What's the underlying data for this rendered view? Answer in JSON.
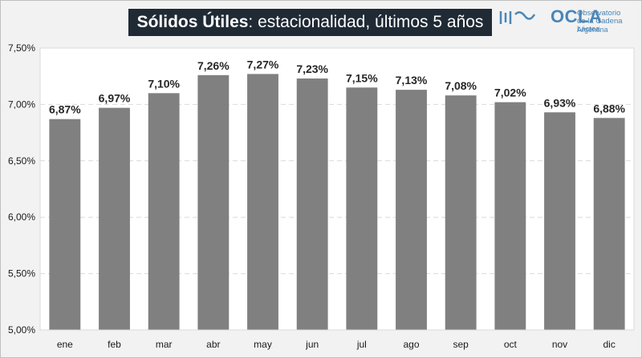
{
  "header": {
    "title_bold": "Sólidos Útiles",
    "title_rest": ": estacionalidad, últimos 5 años"
  },
  "logo": {
    "name": "OCLA",
    "line1": "Observatorio",
    "line2": "de la Cadena Láctea",
    "line3": "Argentina",
    "icon": "milk-wave-icon",
    "color": "#4a86b8"
  },
  "chart_data": {
    "type": "bar",
    "title": "Sólidos Útiles: estacionalidad, últimos 5 años",
    "xlabel": "",
    "ylabel": "",
    "categories": [
      "ene",
      "feb",
      "mar",
      "abr",
      "may",
      "jun",
      "jul",
      "ago",
      "sep",
      "oct",
      "nov",
      "dic"
    ],
    "values": [
      6.87,
      6.97,
      7.1,
      7.26,
      7.27,
      7.23,
      7.15,
      7.13,
      7.08,
      7.02,
      6.93,
      6.88
    ],
    "data_labels": [
      "6,87%",
      "6,97%",
      "7,10%",
      "7,26%",
      "7,27%",
      "7,23%",
      "7,15%",
      "7,13%",
      "7,08%",
      "7,02%",
      "6,93%",
      "6,88%"
    ],
    "ylim": [
      5.0,
      7.5
    ],
    "yticks": [
      5.0,
      5.5,
      6.0,
      6.5,
      7.0,
      7.5
    ],
    "ytick_labels": [
      "5,00%",
      "5,50%",
      "6,00%",
      "6,50%",
      "7,00%",
      "7,50%"
    ],
    "grid": true,
    "bar_color": "#808080",
    "plot_bg": "#ffffff"
  }
}
